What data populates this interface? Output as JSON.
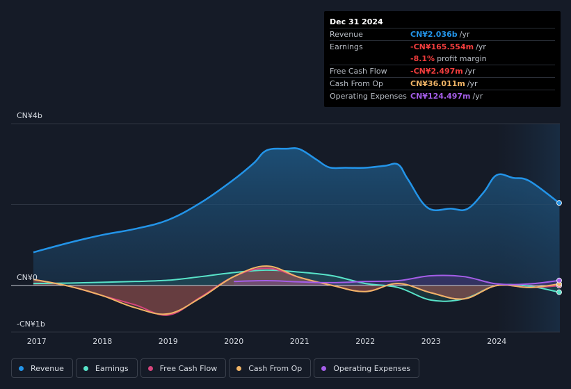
{
  "chart_data": {
    "type": "area",
    "title": "",
    "xlabel": "",
    "ylabel": "",
    "ylim": [
      -1,
      4
    ],
    "y_unit": "CN¥b",
    "xlim": [
      2016.95,
      2024.95
    ],
    "forecast_shade_from": 2024.0,
    "x_ticks": [
      2017,
      2018,
      2019,
      2020,
      2021,
      2022,
      2023,
      2024
    ],
    "x_tick_labels": [
      "2017",
      "2018",
      "2019",
      "2020",
      "2021",
      "2022",
      "2023",
      "2024"
    ],
    "y_tick_labels": {
      "top": "CN¥4b",
      "zero": "CN¥0",
      "bottom": "-CN¥1b"
    },
    "series": [
      {
        "name": "Revenue",
        "key": "revenue",
        "color": "#2394e8",
        "fill": true,
        "x": [
          2016.95,
          2017.5,
          2018.0,
          2018.5,
          2019.0,
          2019.5,
          2020.0,
          2020.3,
          2020.5,
          2020.8,
          2021.0,
          2021.25,
          2021.45,
          2021.7,
          2022.0,
          2022.3,
          2022.5,
          2022.65,
          2022.95,
          2023.3,
          2023.55,
          2023.8,
          2024.0,
          2024.25,
          2024.5,
          2024.95
        ],
        "values": [
          0.82,
          1.06,
          1.25,
          1.4,
          1.62,
          2.05,
          2.62,
          3.02,
          3.34,
          3.38,
          3.37,
          3.12,
          2.92,
          2.91,
          2.91,
          2.96,
          2.99,
          2.62,
          1.92,
          1.9,
          1.89,
          2.3,
          2.73,
          2.66,
          2.58,
          2.04
        ]
      },
      {
        "name": "Earnings",
        "key": "earnings",
        "color": "#58e3c9",
        "fill": true,
        "x": [
          2016.95,
          2017.5,
          2018.0,
          2018.5,
          2019.0,
          2019.5,
          2020.0,
          2020.5,
          2021.0,
          2021.5,
          2022.0,
          2022.5,
          2023.0,
          2023.5,
          2024.0,
          2024.5,
          2024.95
        ],
        "values": [
          0.05,
          0.06,
          0.08,
          0.1,
          0.13,
          0.22,
          0.32,
          0.38,
          0.33,
          0.24,
          0.05,
          -0.05,
          -0.36,
          -0.33,
          0.0,
          -0.02,
          -0.166
        ]
      },
      {
        "name": "Free Cash Flow",
        "key": "fcf",
        "color": "#d6457c",
        "fill": true,
        "x": [
          2016.95,
          2017.5,
          2018.0,
          2018.5,
          2019.0,
          2019.5,
          2020.0,
          2020.5,
          2021.0,
          2021.5,
          2022.0,
          2022.5,
          2023.0,
          2023.5,
          2024.0,
          2024.5,
          2024.95
        ],
        "values": [
          0.15,
          -0.02,
          -0.25,
          -0.48,
          -0.73,
          -0.28,
          0.22,
          0.43,
          0.2,
          0.0,
          -0.15,
          0.05,
          -0.18,
          -0.33,
          0.0,
          -0.05,
          -0.0025
        ]
      },
      {
        "name": "Cash From Op",
        "key": "cfo",
        "color": "#f0b466",
        "fill": true,
        "x": [
          2016.95,
          2017.5,
          2018.0,
          2018.5,
          2019.0,
          2019.5,
          2020.0,
          2020.5,
          2021.0,
          2021.5,
          2022.0,
          2022.5,
          2023.0,
          2023.5,
          2024.0,
          2024.5,
          2024.95
        ],
        "values": [
          0.15,
          -0.02,
          -0.25,
          -0.55,
          -0.7,
          -0.3,
          0.22,
          0.48,
          0.2,
          0.0,
          -0.15,
          0.05,
          -0.18,
          -0.33,
          0.0,
          -0.05,
          0.036
        ]
      },
      {
        "name": "Operating Expenses",
        "key": "opex",
        "color": "#a45ee8",
        "fill": true,
        "x": [
          2020.0,
          2020.5,
          2021.0,
          2021.5,
          2022.0,
          2022.5,
          2023.0,
          2023.5,
          2024.0,
          2024.5,
          2024.95
        ],
        "values": [
          0.1,
          0.12,
          0.09,
          0.07,
          0.1,
          0.12,
          0.24,
          0.22,
          0.04,
          0.04,
          0.124
        ]
      }
    ]
  },
  "tooltip": {
    "date": "Dec 31 2024",
    "rows": [
      {
        "label": "Revenue",
        "value": "CN¥2.036b",
        "unit": "/yr",
        "color": "#2394e8"
      },
      {
        "label": "Earnings",
        "value": "-CN¥165.554m",
        "unit": "/yr",
        "color": "#f23d3d"
      },
      {
        "label": "",
        "value": "-8.1%",
        "unit": "profit margin",
        "color": "#f23d3d"
      },
      {
        "label": "Free Cash Flow",
        "value": "-CN¥2.497m",
        "unit": "/yr",
        "color": "#f23d3d"
      },
      {
        "label": "Cash From Op",
        "value": "CN¥36.011m",
        "unit": "/yr",
        "color": "#f0b466"
      },
      {
        "label": "Operating Expenses",
        "value": "CN¥124.497m",
        "unit": "/yr",
        "color": "#a45ee8"
      }
    ]
  },
  "legend": [
    {
      "label": "Revenue",
      "color": "#2394e8",
      "key": "revenue"
    },
    {
      "label": "Earnings",
      "color": "#58e3c9",
      "key": "earnings"
    },
    {
      "label": "Free Cash Flow",
      "color": "#d6457c",
      "key": "fcf"
    },
    {
      "label": "Cash From Op",
      "color": "#f0b466",
      "key": "cfo"
    },
    {
      "label": "Operating Expenses",
      "color": "#a45ee8",
      "key": "opex"
    }
  ]
}
